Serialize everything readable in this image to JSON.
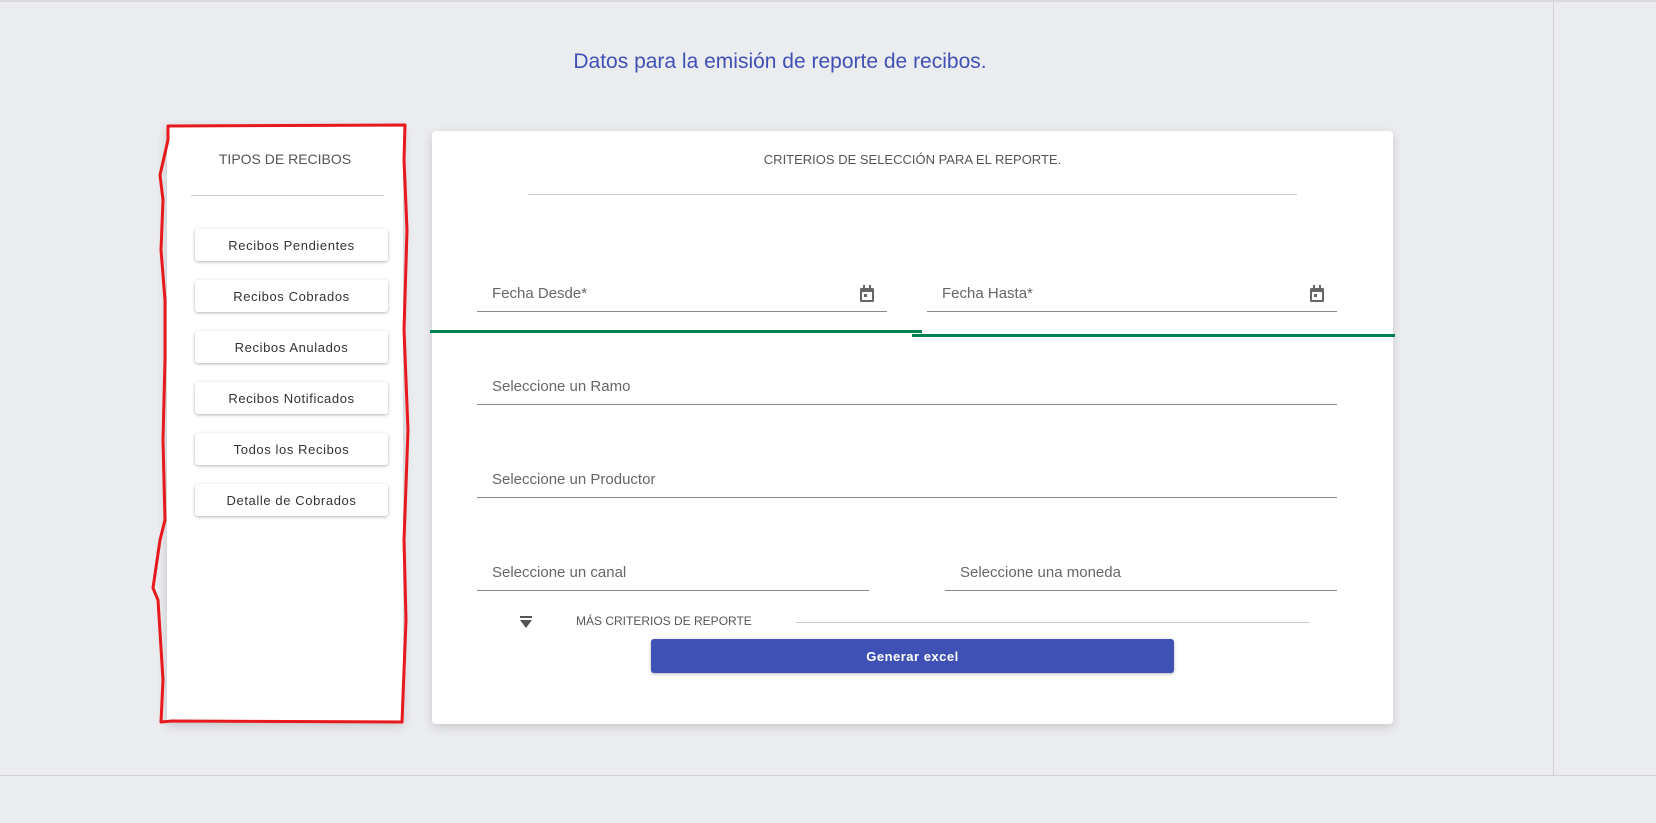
{
  "page": {
    "title": "Datos para la emisión de reporte de recibos."
  },
  "sidebar": {
    "title": "TIPOS DE RECIBOS",
    "items": [
      {
        "label": "Recibos Pendientes"
      },
      {
        "label": "Recibos Cobrados"
      },
      {
        "label": "Recibos Anulados"
      },
      {
        "label": "Recibos Notificados"
      },
      {
        "label": "Todos los Recibos"
      },
      {
        "label": "Detalle de Cobrados"
      }
    ]
  },
  "form": {
    "title": "CRITERIOS DE SELECCIÓN PARA EL REPORTE.",
    "fecha_desde": "Fecha Desde*",
    "fecha_hasta": "Fecha Hasta*",
    "ramo": "Seleccione un Ramo",
    "productor": "Seleccione un Productor",
    "canal": "Seleccione un canal",
    "moneda": "Seleccione una moneda",
    "more_criteria": "MÁS CRITERIOS DE REPORTE",
    "generate_label": "Generar excel"
  },
  "colors": {
    "accent": "#3f51b5",
    "focus_line": "#00804f",
    "annotation": "#e8191c"
  }
}
